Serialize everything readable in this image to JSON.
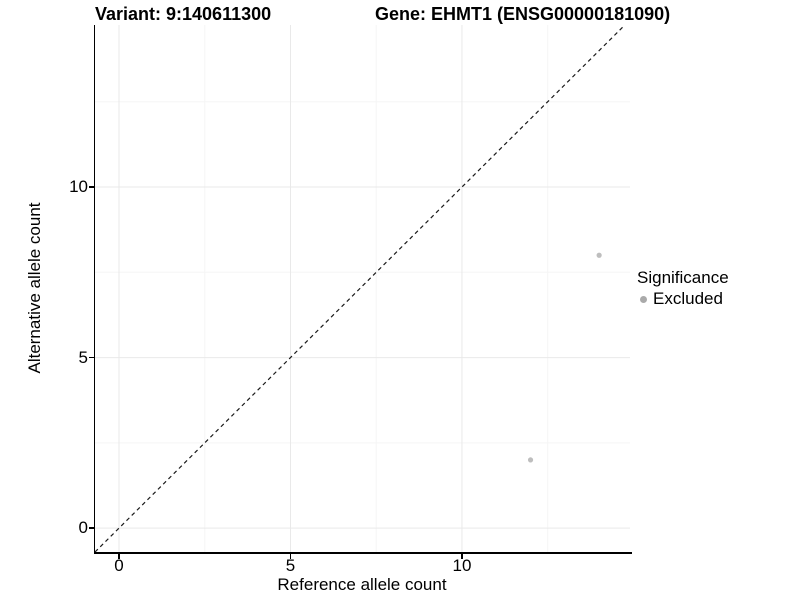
{
  "figure": {
    "title_left": "Variant: 9:140611300",
    "title_right": "Gene: EHMT1 (ENSG00000181090)"
  },
  "chart_data": {
    "type": "scatter",
    "title_left": "Variant: 9:140611300",
    "title_right": "Gene: EHMT1 (ENSG00000181090)",
    "xlabel": "Reference allele count",
    "ylabel": "Alternative allele count",
    "xlim": [
      -0.7,
      14.9
    ],
    "ylim": [
      -0.7,
      14.75
    ],
    "x_ticks": [
      0,
      5,
      10
    ],
    "y_ticks": [
      0,
      5,
      10
    ],
    "x_minor_ticks": [
      2.5,
      7.5,
      12.5
    ],
    "y_minor_ticks": [
      2.5,
      7.5,
      12.5
    ],
    "grid": "major and minor, light gray on white",
    "identity_line": {
      "slope": 1,
      "intercept": 0,
      "style": "dashed",
      "color": "#1a1a1a"
    },
    "series": [
      {
        "name": "Excluded",
        "marker": "circle",
        "color": "#bebebe",
        "point_radius": 2.6,
        "points": [
          [
            12,
            2
          ],
          [
            14,
            8
          ]
        ]
      }
    ],
    "legend": {
      "title": "Significance",
      "position": "right",
      "entries": [
        {
          "label": "Excluded",
          "color": "#aaaaaa"
        }
      ]
    },
    "colors": {
      "background": "#ffffff",
      "grid_major": "#e9e9e9",
      "grid_minor": "#f5f5f5",
      "axis_line": "#000000",
      "point": "#bebebe"
    }
  }
}
